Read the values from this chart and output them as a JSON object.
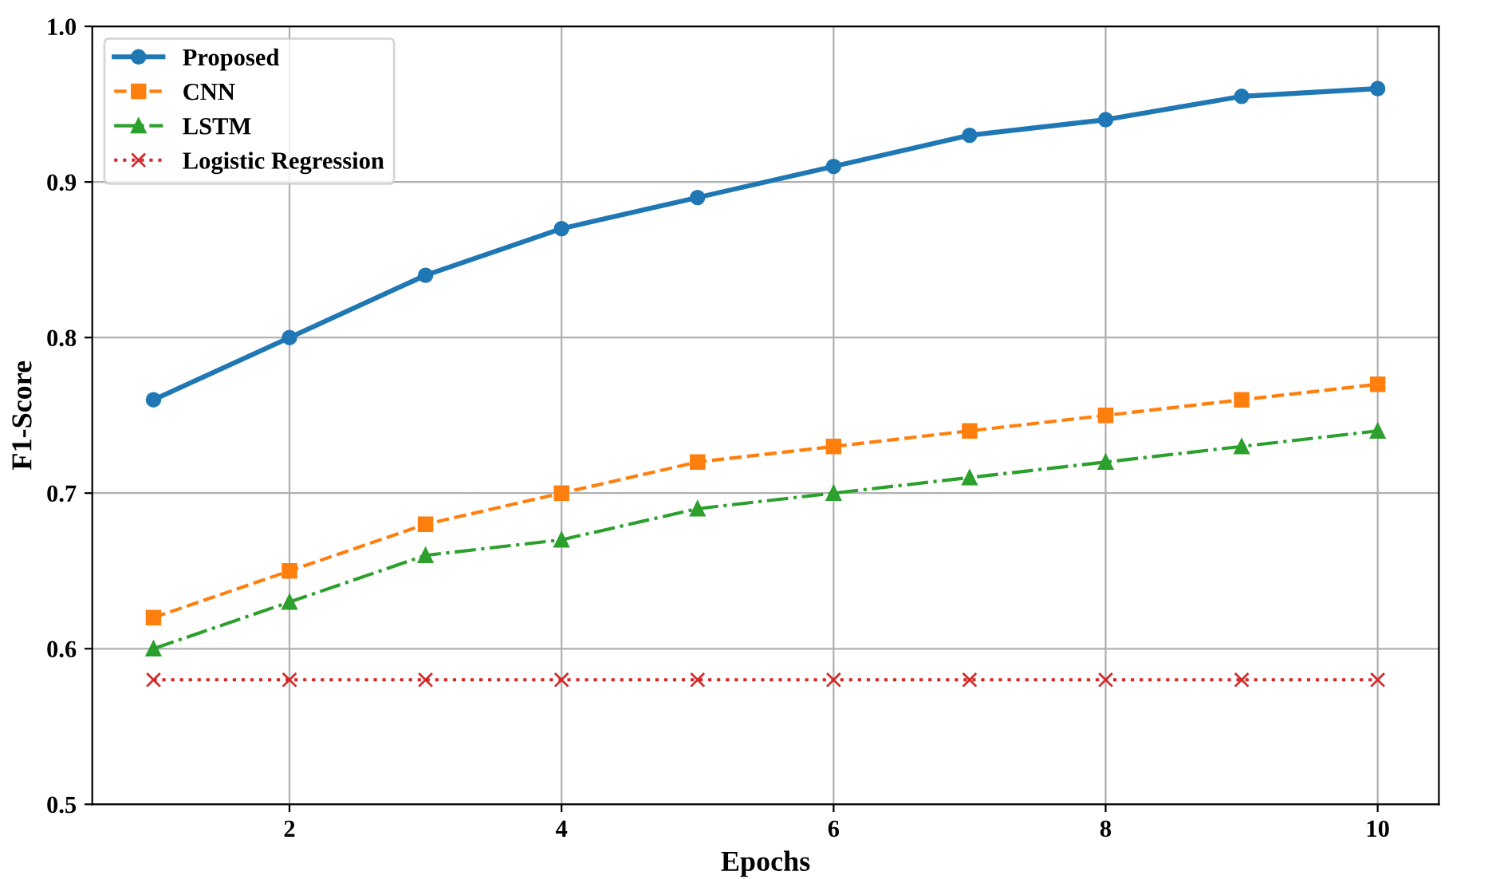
{
  "chart_data": {
    "type": "line",
    "xlabel": "Epochs",
    "ylabel": "F1-Score",
    "x": [
      1,
      2,
      3,
      4,
      5,
      6,
      7,
      8,
      9,
      10
    ],
    "series": [
      {
        "name": "Proposed",
        "color": "#1f77b4",
        "marker": "circle",
        "line_style": "solid",
        "values": [
          0.76,
          0.8,
          0.84,
          0.87,
          0.89,
          0.91,
          0.93,
          0.94,
          0.955,
          0.96
        ]
      },
      {
        "name": "CNN",
        "color": "#ff7f0e",
        "marker": "square",
        "line_style": "dashed",
        "values": [
          0.62,
          0.65,
          0.68,
          0.7,
          0.72,
          0.73,
          0.74,
          0.75,
          0.76,
          0.77
        ]
      },
      {
        "name": "LSTM",
        "color": "#2ca02c",
        "marker": "triangle",
        "line_style": "dashdot",
        "values": [
          0.6,
          0.63,
          0.66,
          0.67,
          0.69,
          0.7,
          0.71,
          0.72,
          0.73,
          0.74
        ]
      },
      {
        "name": "Logistic Regression",
        "color": "#d62728",
        "marker": "cross",
        "line_style": "dotted",
        "values": [
          0.58,
          0.58,
          0.58,
          0.58,
          0.58,
          0.58,
          0.58,
          0.58,
          0.58,
          0.58
        ]
      }
    ],
    "xlim": [
      0.55,
      10.45
    ],
    "xticks": [
      2,
      4,
      6,
      8,
      10
    ],
    "ylim": [
      0.5,
      1.0
    ],
    "yticks": [
      0.5,
      0.6,
      0.7,
      0.8,
      0.9,
      {
        "value": 1.0,
        "label": "1.0"
      }
    ],
    "grid": true,
    "legend": "top left"
  }
}
